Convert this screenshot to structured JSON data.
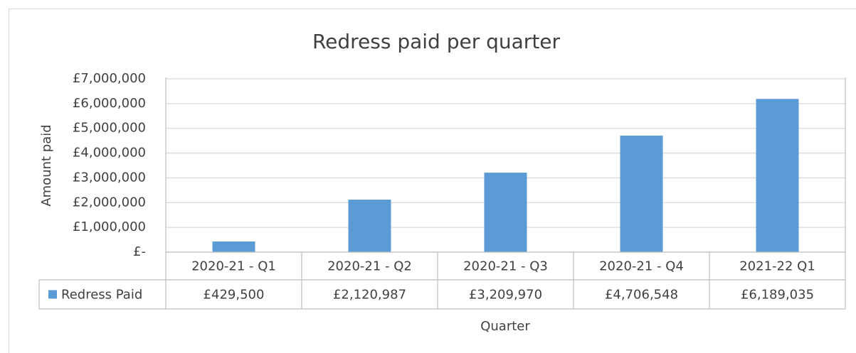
{
  "chart_data": {
    "type": "bar",
    "title": "Redress paid per quarter",
    "x_label": "Quarter",
    "y_label": "Amount paid",
    "categories": [
      "2020-21 - Q1",
      "2020-21 - Q2",
      "2020-21 - Q3",
      "2020-21 - Q4",
      "2021-22 Q1"
    ],
    "series": [
      {
        "name": "Redress Paid",
        "color": "#5b9bd5",
        "values": [
          429500,
          2120987,
          3209970,
          4706548,
          6189035
        ],
        "value_labels": [
          "£429,500",
          "£2,120,987",
          "£3,209,970",
          "£4,706,548",
          "£6,189,035"
        ]
      }
    ],
    "ylim": [
      0,
      7000000
    ],
    "yticks": [
      {
        "value": 0,
        "label": "£-"
      },
      {
        "value": 1000000,
        "label": "£1,000,000"
      },
      {
        "value": 2000000,
        "label": "£2,000,000"
      },
      {
        "value": 3000000,
        "label": "£3,000,000"
      },
      {
        "value": 4000000,
        "label": "£4,000,000"
      },
      {
        "value": 5000000,
        "label": "£5,000,000"
      },
      {
        "value": 6000000,
        "label": "£6,000,000"
      },
      {
        "value": 7000000,
        "label": "£7,000,000"
      }
    ],
    "grid": true,
    "data_table": true
  }
}
